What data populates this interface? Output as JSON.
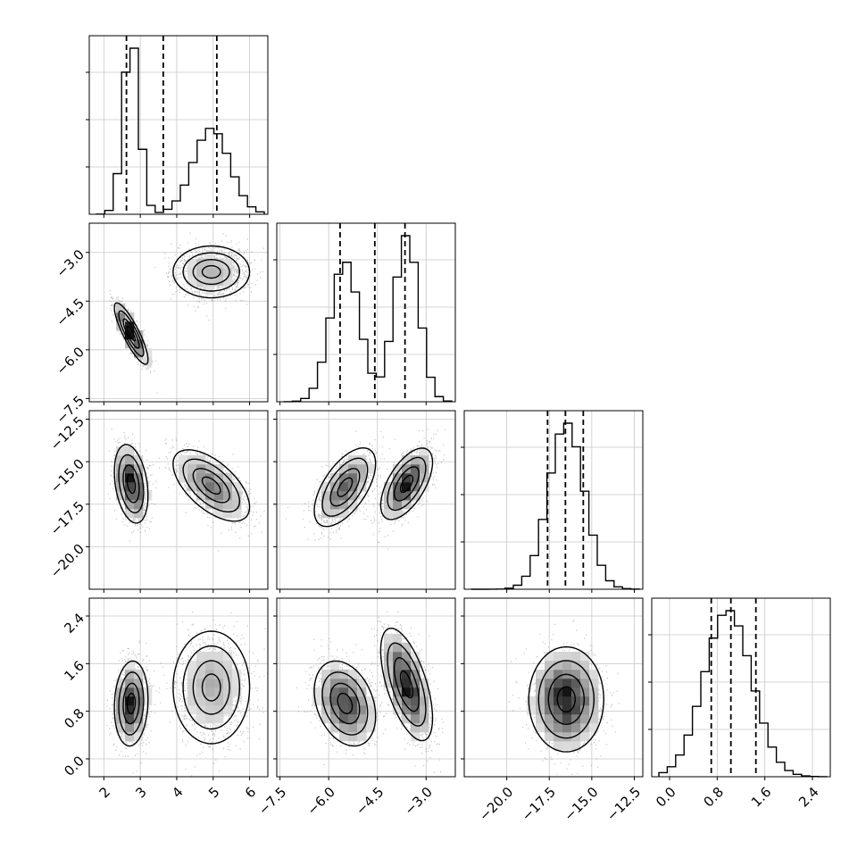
{
  "chart_data": {
    "type": "corner",
    "grid": true,
    "parameters": [
      {
        "range": [
          1.6,
          6.5
        ],
        "ticks": [
          2,
          3,
          4,
          5,
          6
        ],
        "tick_labels": [
          "2",
          "3",
          "4",
          "5",
          "6"
        ],
        "quantiles": [
          2.62,
          3.63,
          5.1
        ],
        "modes": [
          {
            "mean": 2.75,
            "sd": 0.22,
            "weight": 1
          },
          {
            "mean": 4.95,
            "sd": 0.5,
            "weight": 1.1
          }
        ]
      },
      {
        "range": [
          -7.6,
          -2.1
        ],
        "ticks": [
          -7.5,
          -6.0,
          -4.5,
          -3.0
        ],
        "tick_labels": [
          "−7.5",
          "−6.0",
          "−4.5",
          "−3.0"
        ],
        "quantiles": [
          -5.65,
          -4.58,
          -3.65
        ],
        "modes": [
          {
            "mean": -5.5,
            "sd": 0.45,
            "weight": 1
          },
          {
            "mean": -3.6,
            "sd": 0.38,
            "weight": 1
          }
        ]
      },
      {
        "range": [
          -22.5,
          -12.0
        ],
        "ticks": [
          -20.0,
          -17.5,
          -15.0,
          -12.5
        ],
        "tick_labels": [
          "−20.0",
          "−17.5",
          "−15.0",
          "−12.5"
        ],
        "quantiles": [
          -17.6,
          -16.55,
          -15.5
        ],
        "modes": [
          {
            "mean": -16.5,
            "sd": 1.05,
            "weight": 1
          }
        ]
      },
      {
        "range": [
          -0.3,
          2.7
        ],
        "ticks": [
          0.0,
          0.8,
          1.6,
          2.4
        ],
        "tick_labels": [
          "0.0",
          "0.8",
          "1.6",
          "2.4"
        ],
        "quantiles": [
          0.7,
          1.03,
          1.45
        ],
        "modes": [
          {
            "mean": 0.98,
            "sd": 0.4,
            "weight": 1
          }
        ]
      }
    ],
    "pair_modes": [
      {
        "row": 1,
        "col": 0,
        "comps": [
          {
            "c": [
              2.75,
              -5.5
            ],
            "s": [
              0.22,
              0.45
            ],
            "r": -0.85,
            "w": 1
          },
          {
            "c": [
              4.95,
              -3.6
            ],
            "s": [
              0.5,
              0.38
            ],
            "r": 0,
            "w": 1.1
          }
        ]
      },
      {
        "row": 2,
        "col": 0,
        "comps": [
          {
            "c": [
              2.75,
              -16.3
            ],
            "s": [
              0.22,
              1.1
            ],
            "r": -0.3,
            "w": 1
          },
          {
            "c": [
              4.95,
              -16.4
            ],
            "s": [
              0.5,
              1.0
            ],
            "r": -0.6,
            "w": 1.1
          }
        ]
      },
      {
        "row": 2,
        "col": 1,
        "comps": [
          {
            "c": [
              -5.5,
              -16.5
            ],
            "s": [
              0.45,
              1.1
            ],
            "r": 0.6,
            "w": 1
          },
          {
            "c": [
              -3.6,
              -16.3
            ],
            "s": [
              0.38,
              1.0
            ],
            "r": 0.6,
            "w": 1.1
          }
        ]
      },
      {
        "row": 3,
        "col": 0,
        "comps": [
          {
            "c": [
              2.75,
              0.93
            ],
            "s": [
              0.22,
              0.34
            ],
            "r": 0.1,
            "w": 1
          },
          {
            "c": [
              4.95,
              1.2
            ],
            "s": [
              0.5,
              0.45
            ],
            "r": 0,
            "w": 1.1
          }
        ]
      },
      {
        "row": 3,
        "col": 1,
        "comps": [
          {
            "c": [
              -5.5,
              0.93
            ],
            "s": [
              0.45,
              0.34
            ],
            "r": -0.3,
            "w": 1
          },
          {
            "c": [
              -3.6,
              1.25
            ],
            "s": [
              0.38,
              0.45
            ],
            "r": -0.6,
            "w": 1.1
          }
        ]
      },
      {
        "row": 3,
        "col": 2,
        "comps": [
          {
            "c": [
              -16.5,
              1.0
            ],
            "s": [
              1.05,
              0.42
            ],
            "r": 0,
            "w": 1
          }
        ]
      }
    ]
  }
}
